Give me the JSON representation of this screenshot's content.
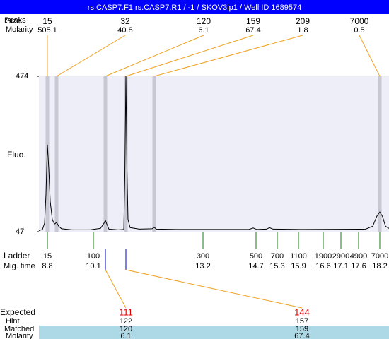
{
  "chart_data": {
    "type": "electropherogram",
    "title": "rs.CASP7.F1  rs.CASP7.R1 / -1 / SKOV3ip1 / Well ID 1689574",
    "row_labels": {
      "peaks": "Peaks",
      "size": "Size",
      "molarity": "Molarity",
      "y_axis": "Fluo.",
      "ladder": "Ladder",
      "mig_time": "Mig. time",
      "expected": "Expected",
      "hint": "Hint",
      "matched": "Matched",
      "matched_molarity": "Molarity"
    },
    "ylim": [
      47,
      474
    ],
    "yticks": [
      47,
      474
    ],
    "xlim": [
      8.56,
      18.46
    ],
    "peaks": {
      "sizes": [
        15,
        32,
        120,
        159,
        209,
        7000
      ],
      "molarity": [
        505.1,
        40.8,
        6.1,
        67.4,
        1.8,
        0.5
      ],
      "times": [
        8.8,
        9.06,
        10.44,
        11.02,
        11.82,
        18.2
      ]
    },
    "ladder": {
      "sizes": [
        15,
        100,
        300,
        500,
        700,
        1100,
        1900,
        2900,
        4900,
        7000
      ],
      "mig_times": [
        8.8,
        10.1,
        13.2,
        14.7,
        15.3,
        15.9,
        16.6,
        17.1,
        17.6,
        18.2
      ]
    },
    "expected": {
      "expected": [
        111,
        144
      ],
      "hint": [
        122,
        157
      ],
      "matched": [
        120,
        159
      ],
      "molarity": [
        6.1,
        67.4
      ]
    },
    "trace": {
      "color": "#000000",
      "x": [
        8.56,
        8.66,
        8.72,
        8.76,
        8.8,
        8.84,
        8.88,
        8.94,
        9.0,
        9.06,
        9.12,
        9.2,
        9.5,
        10.0,
        10.3,
        10.4,
        10.44,
        10.48,
        10.54,
        10.8,
        10.96,
        10.99,
        11.02,
        11.05,
        11.08,
        11.14,
        11.4,
        11.76,
        11.82,
        11.88,
        12.5,
        14.5,
        14.62,
        14.72,
        15.0,
        15.08,
        15.18,
        16.0,
        17.8,
        18.0,
        18.12,
        18.2,
        18.28,
        18.36,
        18.46
      ],
      "values": [
        50,
        53,
        70,
        150,
        286,
        220,
        130,
        80,
        68,
        72,
        62,
        55,
        52,
        52,
        56,
        70,
        78,
        68,
        54,
        52,
        53,
        200,
        474,
        220,
        80,
        58,
        54,
        55,
        59,
        54,
        53,
        53,
        57,
        53,
        54,
        58,
        54,
        53,
        54,
        62,
        90,
        101,
        88,
        62,
        56
      ]
    }
  }
}
